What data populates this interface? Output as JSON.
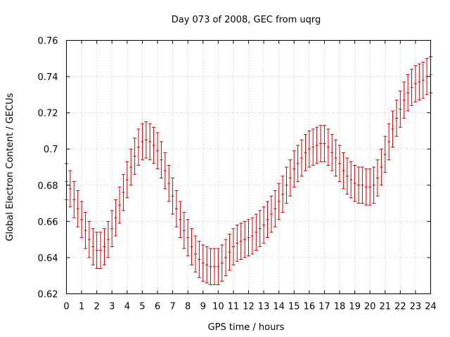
{
  "chart_data": {
    "type": "line",
    "style": "errorbars",
    "title": "Day 073 of 2008, GEC from uqrg",
    "xlabel": "GPS time / hours",
    "ylabel": "Global Electron Content / GECUs",
    "xlim": [
      0,
      24
    ],
    "ylim": [
      0.62,
      0.76
    ],
    "xticks": [
      "0",
      "1",
      "2",
      "3",
      "4",
      "5",
      "6",
      "7",
      "8",
      "9",
      "10",
      "11",
      "12",
      "13",
      "14",
      "15",
      "16",
      "17",
      "18",
      "19",
      "20",
      "21",
      "22",
      "23",
      "24"
    ],
    "yticks": [
      "0.62",
      "0.64",
      "0.66",
      "0.68",
      "0.7",
      "0.72",
      "0.74",
      "0.76"
    ],
    "grid": true,
    "color": "#cc0000",
    "series": [
      {
        "name": "GEC",
        "x": [
          0,
          0.25,
          0.5,
          0.75,
          1,
          1.25,
          1.5,
          1.75,
          2,
          2.25,
          2.5,
          2.75,
          3,
          3.25,
          3.5,
          3.75,
          4,
          4.25,
          4.5,
          4.75,
          5,
          5.25,
          5.5,
          5.75,
          6,
          6.25,
          6.5,
          6.75,
          7,
          7.25,
          7.5,
          7.75,
          8,
          8.25,
          8.5,
          8.75,
          9,
          9.25,
          9.5,
          9.75,
          10,
          10.25,
          10.5,
          10.75,
          11,
          11.25,
          11.5,
          11.75,
          12,
          12.25,
          12.5,
          12.75,
          13,
          13.25,
          13.5,
          13.75,
          14,
          14.25,
          14.5,
          14.75,
          15,
          15.25,
          15.5,
          15.75,
          16,
          16.25,
          16.5,
          16.75,
          17,
          17.25,
          17.5,
          17.75,
          18,
          18.25,
          18.5,
          18.75,
          19,
          19.25,
          19.5,
          19.75,
          20,
          20.25,
          20.5,
          20.75,
          21,
          21.25,
          21.5,
          21.75,
          22,
          22.25,
          22.5,
          22.75,
          23,
          23.25,
          23.5,
          23.75,
          24
        ],
        "y": [
          0.682,
          0.678,
          0.672,
          0.667,
          0.661,
          0.655,
          0.65,
          0.646,
          0.644,
          0.644,
          0.646,
          0.65,
          0.656,
          0.662,
          0.669,
          0.676,
          0.683,
          0.69,
          0.696,
          0.701,
          0.704,
          0.705,
          0.704,
          0.702,
          0.699,
          0.694,
          0.688,
          0.681,
          0.674,
          0.667,
          0.661,
          0.655,
          0.651,
          0.646,
          0.642,
          0.639,
          0.637,
          0.636,
          0.635,
          0.635,
          0.635,
          0.637,
          0.64,
          0.643,
          0.646,
          0.648,
          0.649,
          0.65,
          0.651,
          0.652,
          0.654,
          0.656,
          0.658,
          0.661,
          0.664,
          0.667,
          0.671,
          0.675,
          0.68,
          0.684,
          0.689,
          0.692,
          0.695,
          0.698,
          0.7,
          0.701,
          0.702,
          0.703,
          0.703,
          0.701,
          0.698,
          0.695,
          0.692,
          0.688,
          0.685,
          0.683,
          0.681,
          0.68,
          0.68,
          0.679,
          0.679,
          0.68,
          0.684,
          0.69,
          0.697,
          0.704,
          0.711,
          0.717,
          0.722,
          0.727,
          0.731,
          0.734,
          0.736,
          0.737,
          0.738,
          0.74,
          0.741
        ],
        "error": 0.01
      }
    ]
  }
}
